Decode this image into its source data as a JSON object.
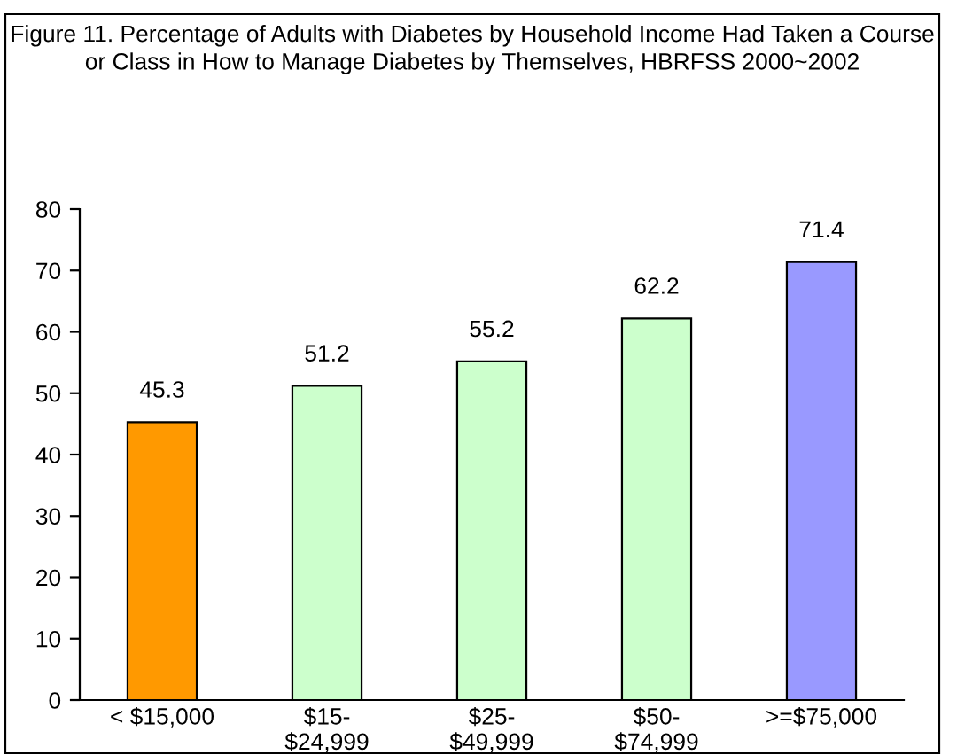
{
  "chart_data": {
    "type": "bar",
    "title": "Figure 11. Percentage of Adults with Diabetes by Household Income Had Taken a Course or Class in How to Manage Diabetes by Themselves, HBRFSS 2000~2002",
    "categories": [
      "< $15,000",
      "$15-\n$24,999",
      "$25-\n$49,999",
      "$50-\n$74,999",
      ">=$75,000"
    ],
    "values": [
      45.3,
      51.2,
      55.2,
      62.2,
      71.4
    ],
    "colors": [
      "#ff9900",
      "#ccffcc",
      "#ccffcc",
      "#ccffcc",
      "#9999ff"
    ],
    "ylim": [
      0,
      80
    ],
    "yticks": [
      0,
      10,
      20,
      30,
      40,
      50,
      60,
      70,
      80
    ],
    "data_labels": true,
    "grid": false
  }
}
